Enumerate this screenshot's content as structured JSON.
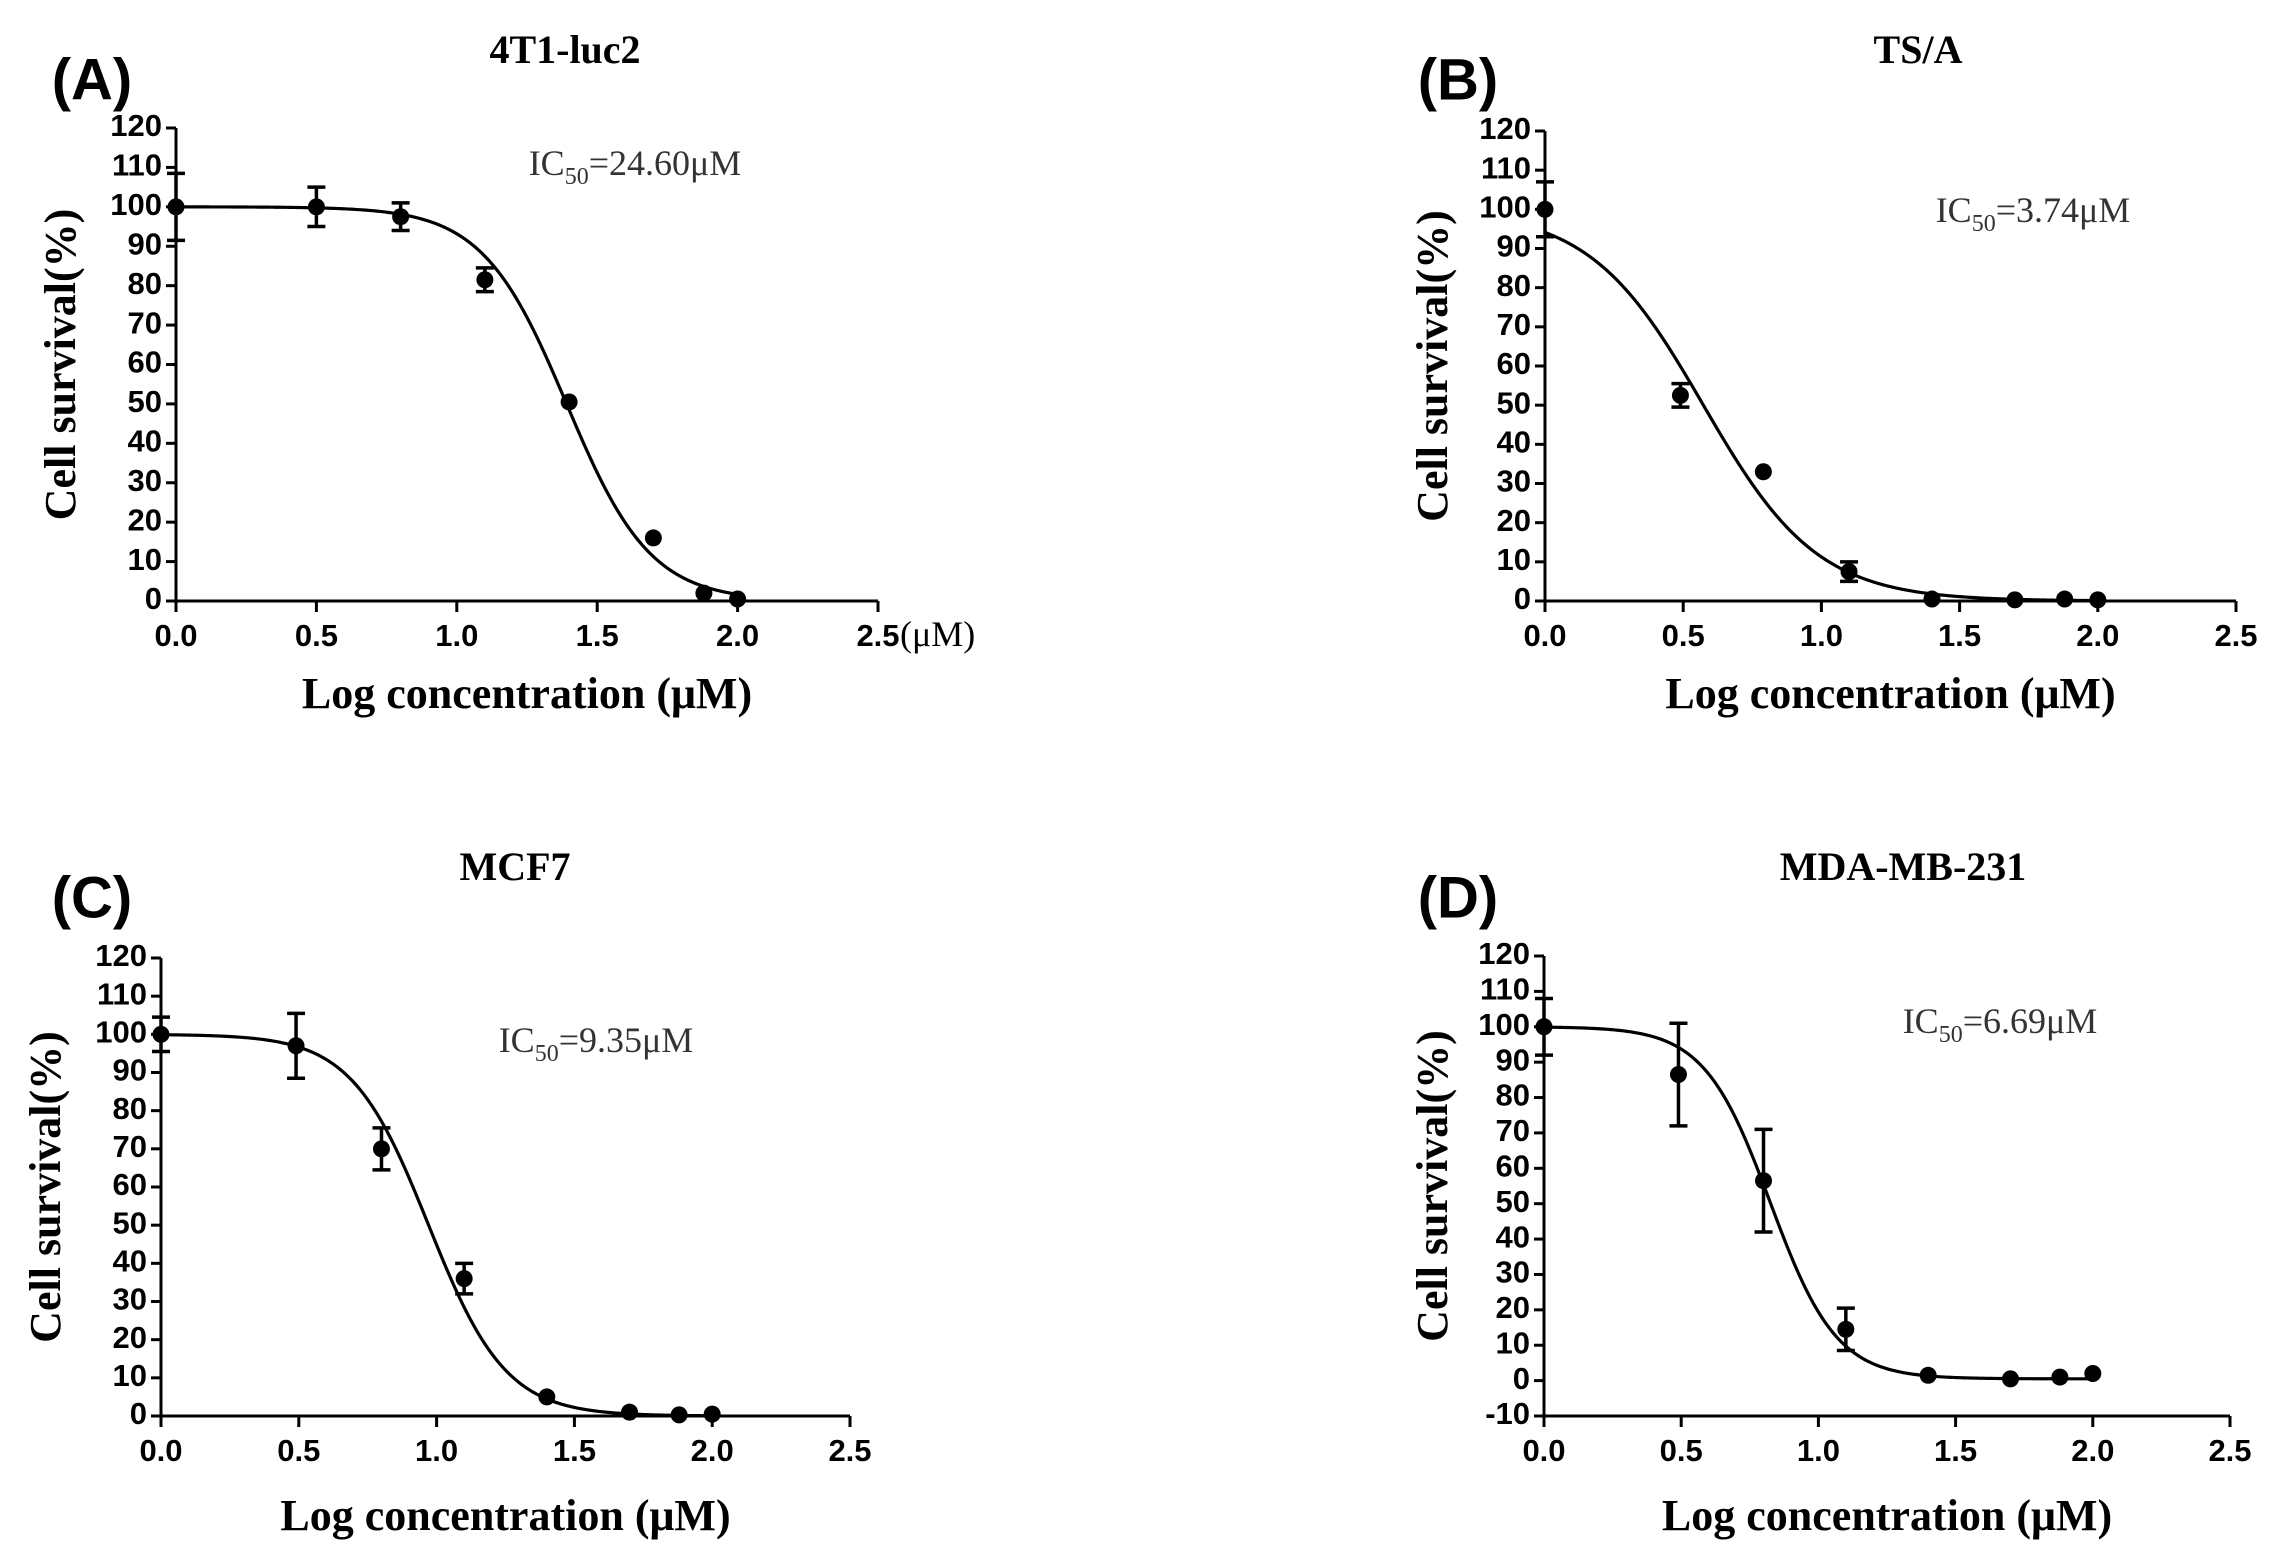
{
  "figure": {
    "chart_data": [
      {
        "type": "scatter",
        "panel": "(A)",
        "title": "4T1-luc2",
        "xlabel": "Log concentration (μM)",
        "ylabel": "Cell survival(%)",
        "xlim": [
          0,
          2.5
        ],
        "ylim": [
          0,
          120
        ],
        "x_ticks": [
          "0.0",
          "0.5",
          "1.0",
          "1.5",
          "2.0",
          "2.5"
        ],
        "y_ticks": [
          "0",
          "10",
          "20",
          "30",
          "40",
          "50",
          "60",
          "70",
          "80",
          "90",
          "100",
          "110",
          "120"
        ],
        "x_unit_note": "(μM)",
        "annotation": {
          "prefix": "IC",
          "sub": "50",
          "suffix": "=24.60μM"
        },
        "series": [
          {
            "name": "Cell survival",
            "x": [
              0.0,
              0.5,
              0.8,
              1.1,
              1.4,
              1.7,
              1.88,
              2.0
            ],
            "y": [
              100,
              100,
              97.5,
              81.5,
              50.5,
              16,
              2,
              0.5
            ],
            "err": [
              8.5,
              5,
              3.5,
              3,
              0,
              0,
              0,
              0
            ]
          }
        ],
        "fit": {
          "top": 100,
          "bottom": 0,
          "log_ic50": 1.391,
          "hill": -2.9
        }
      },
      {
        "type": "scatter",
        "panel": "(B)",
        "title": "TS/A",
        "xlabel": "Log concentration (μM)",
        "ylabel": "Cell survival(%)",
        "xlim": [
          0,
          2.5
        ],
        "ylim": [
          0,
          120
        ],
        "x_ticks": [
          "0.0",
          "0.5",
          "1.0",
          "1.5",
          "2.0",
          "2.5"
        ],
        "y_ticks": [
          "0",
          "10",
          "20",
          "30",
          "40",
          "50",
          "60",
          "70",
          "80",
          "90",
          "100",
          "110",
          "120"
        ],
        "annotation": {
          "prefix": "IC",
          "sub": "50",
          "suffix": "=3.74μM"
        },
        "series": [
          {
            "name": "Cell survival",
            "x": [
              0.0,
              0.49,
              0.79,
              1.1,
              1.4,
              1.7,
              1.88,
              2.0
            ],
            "y": [
              100,
              52.5,
              33,
              7.5,
              0.5,
              0.3,
              0.5,
              0.3
            ],
            "err": [
              7,
              3,
              0,
              2.5,
              0,
              0,
              0,
              0
            ]
          }
        ],
        "fit": {
          "top": 100,
          "bottom": 0,
          "log_ic50": 0.573,
          "hill": -2.1
        }
      },
      {
        "type": "scatter",
        "panel": "(C)",
        "title": "MCF7",
        "xlabel": "Log concentration (μM)",
        "ylabel": "Cell survival(%)",
        "xlim": [
          0,
          2.5
        ],
        "ylim": [
          0,
          120
        ],
        "x_ticks": [
          "0.0",
          "0.5",
          "1.0",
          "1.5",
          "2.0",
          "2.5"
        ],
        "y_ticks": [
          "0",
          "10",
          "20",
          "30",
          "40",
          "50",
          "60",
          "70",
          "80",
          "90",
          "100",
          "110",
          "120"
        ],
        "annotation": {
          "prefix": "IC",
          "sub": "50",
          "suffix": "=9.35μM"
        },
        "series": [
          {
            "name": "Cell survival",
            "x": [
              0.0,
              0.49,
              0.8,
              1.1,
              1.4,
              1.7,
              1.88,
              2.0
            ],
            "y": [
              100,
              97,
              70,
              36,
              5,
              1,
              0.3,
              0.5
            ],
            "err": [
              4.5,
              8.5,
              5.5,
              4,
              0,
              0,
              0,
              0
            ]
          }
        ],
        "fit": {
          "top": 100,
          "bottom": 0,
          "log_ic50": 0.971,
          "hill": -3.1
        }
      },
      {
        "type": "scatter",
        "panel": "(D)",
        "title": "MDA-MB-231",
        "xlabel": "Log concentration (μM)",
        "ylabel": "Cell survival(%)",
        "xlim": [
          0,
          2.5
        ],
        "ylim": [
          -10,
          120
        ],
        "x_ticks": [
          "0.0",
          "0.5",
          "1.0",
          "1.5",
          "2.0",
          "2.5"
        ],
        "y_ticks": [
          "-10",
          "0",
          "10",
          "20",
          "30",
          "40",
          "50",
          "60",
          "70",
          "80",
          "90",
          "100",
          "110",
          "120"
        ],
        "annotation": {
          "prefix": "IC",
          "sub": "50",
          "suffix": "=6.69μM"
        },
        "series": [
          {
            "name": "Cell survival",
            "x": [
              0.0,
              0.49,
              0.8,
              1.1,
              1.4,
              1.7,
              1.88,
              2.0
            ],
            "y": [
              100,
              86.5,
              56.5,
              14.5,
              1.5,
              0.5,
              1,
              2
            ],
            "err": [
              8,
              14.5,
              14.5,
              6,
              0,
              0,
              0,
              0
            ]
          }
        ],
        "fit": {
          "top": 100,
          "bottom": 0.5,
          "log_ic50": 0.825,
          "hill": -3.6
        }
      }
    ]
  }
}
